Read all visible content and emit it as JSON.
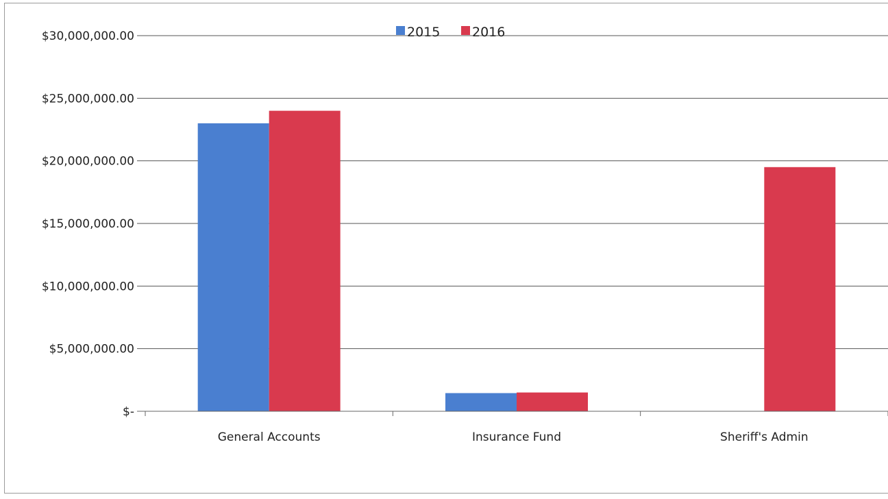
{
  "chart_data": {
    "type": "bar",
    "categories": [
      "General Accounts",
      "Insurance Fund",
      "Sheriff's Admin"
    ],
    "series": [
      {
        "name": "2015",
        "values": [
          23000000,
          1450000,
          0
        ],
        "color": "#4a7fd0"
      },
      {
        "name": "2016",
        "values": [
          24000000,
          1500000,
          19500000
        ],
        "color": "#d93a4e"
      }
    ],
    "ylim": [
      0,
      30000000
    ],
    "yticks": [
      0,
      5000000,
      10000000,
      15000000,
      20000000,
      25000000,
      30000000
    ],
    "ytick_labels": [
      "$-",
      "$5,000,000.00",
      "$10,000,000.00",
      "$15,000,000.00",
      "$20,000,000.00",
      "$25,000,000.00",
      "$30,000,000.00"
    ],
    "grid": true,
    "legend_position": "top-center",
    "title": "",
    "xlabel": "",
    "ylabel": ""
  }
}
